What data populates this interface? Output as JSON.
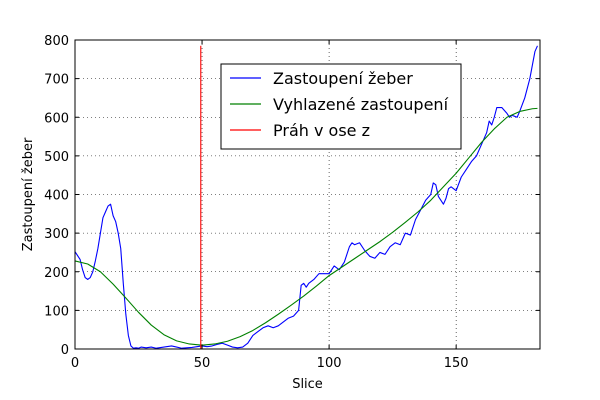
{
  "chart_data": {
    "type": "line",
    "title": "",
    "xlabel": "Slice",
    "ylabel": "Zastoupení žeber",
    "xlim": [
      0,
      183
    ],
    "ylim": [
      0,
      800
    ],
    "x_ticks": [
      0,
      50,
      100,
      150
    ],
    "y_ticks": [
      0,
      100,
      200,
      300,
      400,
      500,
      600,
      700,
      800
    ],
    "x_tick_labels": [
      "0",
      "50",
      "100",
      "150"
    ],
    "y_tick_labels": [
      "0",
      "100",
      "200",
      "300",
      "400",
      "500",
      "600",
      "700",
      "800"
    ],
    "grid": true,
    "legend": {
      "position": "top-right"
    },
    "series": [
      {
        "name": "Zastoupení žeber",
        "color": "#0000ff",
        "style": "solid",
        "points": [
          [
            0,
            252
          ],
          [
            2,
            232
          ],
          [
            3,
            205
          ],
          [
            4,
            185
          ],
          [
            5,
            180
          ],
          [
            6,
            185
          ],
          [
            7,
            200
          ],
          [
            8,
            228
          ],
          [
            9,
            260
          ],
          [
            10,
            300
          ],
          [
            11,
            340
          ],
          [
            12,
            355
          ],
          [
            13,
            370
          ],
          [
            14,
            375
          ],
          [
            15,
            345
          ],
          [
            16,
            330
          ],
          [
            17,
            300
          ],
          [
            18,
            260
          ],
          [
            19,
            170
          ],
          [
            20,
            90
          ],
          [
            21,
            35
          ],
          [
            22,
            8
          ],
          [
            23,
            2
          ],
          [
            24,
            3
          ],
          [
            25,
            2
          ],
          [
            26,
            5
          ],
          [
            28,
            3
          ],
          [
            30,
            5
          ],
          [
            32,
            2
          ],
          [
            34,
            4
          ],
          [
            36,
            6
          ],
          [
            38,
            8
          ],
          [
            40,
            5
          ],
          [
            42,
            2
          ],
          [
            44,
            3
          ],
          [
            46,
            4
          ],
          [
            48,
            6
          ],
          [
            50,
            8
          ],
          [
            52,
            6
          ],
          [
            54,
            8
          ],
          [
            56,
            12
          ],
          [
            58,
            15
          ],
          [
            60,
            10
          ],
          [
            62,
            5
          ],
          [
            64,
            3
          ],
          [
            66,
            5
          ],
          [
            68,
            15
          ],
          [
            70,
            35
          ],
          [
            72,
            45
          ],
          [
            74,
            55
          ],
          [
            76,
            60
          ],
          [
            78,
            55
          ],
          [
            80,
            60
          ],
          [
            82,
            70
          ],
          [
            84,
            80
          ],
          [
            86,
            85
          ],
          [
            88,
            100
          ],
          [
            89,
            165
          ],
          [
            90,
            170
          ],
          [
            91,
            160
          ],
          [
            92,
            170
          ],
          [
            94,
            180
          ],
          [
            96,
            195
          ],
          [
            98,
            195
          ],
          [
            100,
            195
          ],
          [
            102,
            215
          ],
          [
            104,
            205
          ],
          [
            106,
            225
          ],
          [
            108,
            265
          ],
          [
            109,
            275
          ],
          [
            110,
            270
          ],
          [
            112,
            275
          ],
          [
            114,
            255
          ],
          [
            116,
            240
          ],
          [
            118,
            235
          ],
          [
            120,
            250
          ],
          [
            122,
            245
          ],
          [
            124,
            265
          ],
          [
            126,
            275
          ],
          [
            128,
            270
          ],
          [
            130,
            300
          ],
          [
            132,
            295
          ],
          [
            134,
            335
          ],
          [
            136,
            360
          ],
          [
            138,
            385
          ],
          [
            140,
            400
          ],
          [
            141,
            430
          ],
          [
            142,
            425
          ],
          [
            143,
            395
          ],
          [
            144,
            385
          ],
          [
            145,
            375
          ],
          [
            146,
            390
          ],
          [
            147,
            415
          ],
          [
            148,
            420
          ],
          [
            150,
            410
          ],
          [
            152,
            445
          ],
          [
            154,
            465
          ],
          [
            156,
            485
          ],
          [
            158,
            500
          ],
          [
            160,
            530
          ],
          [
            162,
            560
          ],
          [
            163,
            590
          ],
          [
            164,
            580
          ],
          [
            165,
            600
          ],
          [
            166,
            625
          ],
          [
            168,
            625
          ],
          [
            170,
            610
          ],
          [
            171,
            600
          ],
          [
            172,
            605
          ],
          [
            174,
            600
          ],
          [
            175,
            615
          ],
          [
            177,
            650
          ],
          [
            179,
            700
          ],
          [
            181,
            770
          ],
          [
            182,
            785
          ]
        ]
      },
      {
        "name": "Vyhlazené zastoupení",
        "color": "#008000",
        "style": "solid",
        "points": [
          [
            0,
            228
          ],
          [
            5,
            220
          ],
          [
            10,
            200
          ],
          [
            15,
            168
          ],
          [
            20,
            132
          ],
          [
            25,
            95
          ],
          [
            30,
            62
          ],
          [
            35,
            37
          ],
          [
            40,
            21
          ],
          [
            45,
            13
          ],
          [
            50,
            10
          ],
          [
            55,
            13
          ],
          [
            60,
            20
          ],
          [
            65,
            32
          ],
          [
            70,
            48
          ],
          [
            75,
            68
          ],
          [
            80,
            90
          ],
          [
            85,
            113
          ],
          [
            90,
            137
          ],
          [
            95,
            163
          ],
          [
            100,
            190
          ],
          [
            105,
            212
          ],
          [
            110,
            234
          ],
          [
            115,
            256
          ],
          [
            120,
            278
          ],
          [
            125,
            302
          ],
          [
            130,
            328
          ],
          [
            135,
            355
          ],
          [
            140,
            385
          ],
          [
            145,
            420
          ],
          [
            150,
            455
          ],
          [
            155,
            495
          ],
          [
            160,
            535
          ],
          [
            165,
            570
          ],
          [
            170,
            600
          ],
          [
            175,
            615
          ],
          [
            180,
            622
          ],
          [
            182,
            623
          ]
        ]
      },
      {
        "name": "Práh v ose z",
        "color": "#ff0000",
        "style": "solid",
        "points": [
          [
            49.5,
            0
          ],
          [
            49.5,
            785
          ]
        ]
      }
    ]
  }
}
